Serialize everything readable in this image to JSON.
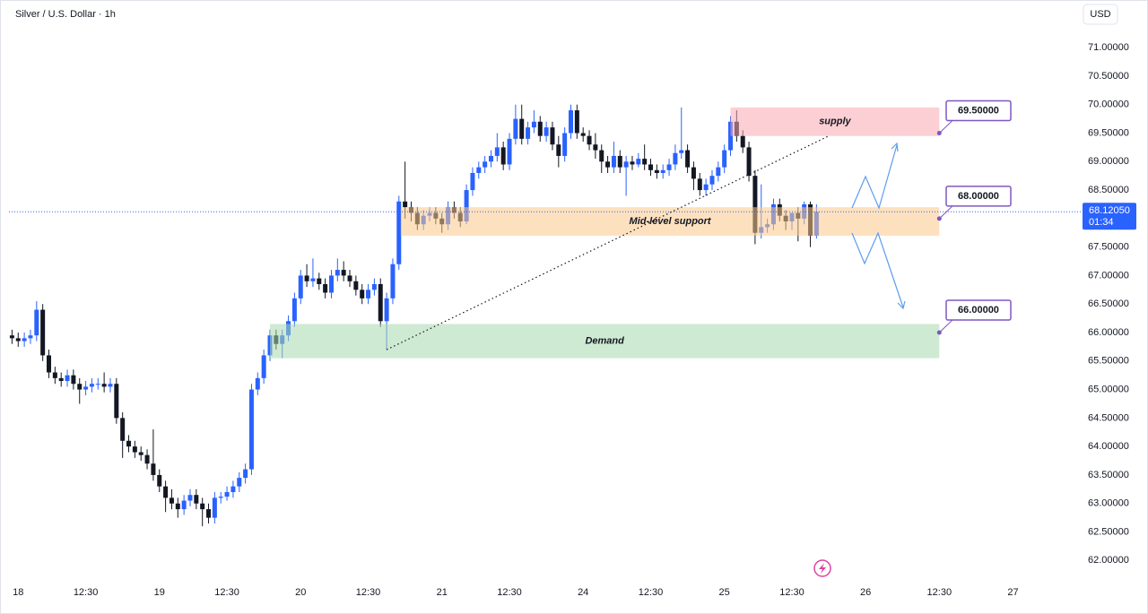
{
  "chart_data": {
    "type": "candlestick",
    "title": "Silver / U.S. Dollar · 1h",
    "currency": "USD",
    "x": [
      0,
      1,
      2,
      3,
      4,
      5,
      6,
      7,
      8,
      9,
      10,
      11,
      12,
      13,
      14,
      15,
      16,
      17,
      18,
      19,
      20,
      21,
      22,
      23,
      24,
      25,
      26,
      27,
      28,
      29,
      30,
      31,
      32,
      33,
      34,
      35,
      36,
      37,
      38,
      39,
      40,
      41,
      42,
      43,
      44,
      45,
      46,
      47,
      48,
      49,
      50,
      51,
      52,
      53,
      54,
      55,
      56,
      57,
      58,
      59,
      60,
      61,
      62,
      63,
      64,
      65,
      66,
      67,
      68,
      69,
      70,
      71,
      72,
      73,
      74,
      75,
      76,
      77,
      78,
      79,
      80,
      81,
      82,
      83,
      84,
      85,
      86,
      87,
      88,
      89,
      90,
      91,
      92,
      93,
      94,
      95,
      96,
      97,
      98,
      99,
      100,
      101,
      102,
      103,
      104,
      105,
      106,
      107,
      108,
      109,
      110,
      111,
      112,
      113,
      114,
      115,
      116,
      117,
      118,
      119,
      120,
      121,
      122,
      123,
      124,
      125,
      126,
      127,
      128,
      129,
      130,
      131
    ],
    "open": [
      65.95,
      65.9,
      65.85,
      65.9,
      65.95,
      66.4,
      65.6,
      65.3,
      65.2,
      65.15,
      65.25,
      65.1,
      65.0,
      65.05,
      65.1,
      65.1,
      65.05,
      65.1,
      64.5,
      64.1,
      64.0,
      63.9,
      63.85,
      63.7,
      63.5,
      63.3,
      63.1,
      63.0,
      62.9,
      63.05,
      63.15,
      63.0,
      62.9,
      62.75,
      63.1,
      63.12,
      63.2,
      63.3,
      63.45,
      63.6,
      65.0,
      65.2,
      65.6,
      65.95,
      65.8,
      65.95,
      66.2,
      66.6,
      67.0,
      66.9,
      66.95,
      66.85,
      66.7,
      67.0,
      67.1,
      67.0,
      66.9,
      66.75,
      66.6,
      66.75,
      66.85,
      66.2,
      66.6,
      67.2,
      68.3,
      68.2,
      68.1,
      67.9,
      68.05,
      68.1,
      68.0,
      67.9,
      68.2,
      68.1,
      67.95,
      68.5,
      68.8,
      68.9,
      69.0,
      69.1,
      69.25,
      68.95,
      69.4,
      69.75,
      69.4,
      69.6,
      69.7,
      69.45,
      69.6,
      69.3,
      69.1,
      69.5,
      69.9,
      69.5,
      69.45,
      69.3,
      69.2,
      69.0,
      68.9,
      69.1,
      68.9,
      69.0,
      68.95,
      69.05,
      68.95,
      68.85,
      68.8,
      68.85,
      68.95,
      69.15,
      69.2,
      68.9,
      68.7,
      68.5,
      68.6,
      68.75,
      68.9,
      69.2,
      69.7,
      69.45,
      69.25,
      68.75,
      67.75,
      67.85,
      67.9,
      68.25,
      68.05,
      67.95,
      68.1,
      68.0,
      68.25,
      67.7
    ],
    "high": [
      66.05,
      66.0,
      66.0,
      66.05,
      66.55,
      66.5,
      65.7,
      65.4,
      65.3,
      65.35,
      65.35,
      65.2,
      65.15,
      65.2,
      65.2,
      65.3,
      65.2,
      65.2,
      64.6,
      64.2,
      64.1,
      64.0,
      63.95,
      64.3,
      63.6,
      63.4,
      63.25,
      63.1,
      63.15,
      63.25,
      63.25,
      63.1,
      63.0,
      63.2,
      63.2,
      63.3,
      63.4,
      63.55,
      63.7,
      65.1,
      65.3,
      65.7,
      66.05,
      66.05,
      66.05,
      66.3,
      66.7,
      67.1,
      67.2,
      67.3,
      67.05,
      66.95,
      67.1,
      67.3,
      67.25,
      67.1,
      67.0,
      66.85,
      66.85,
      66.95,
      66.95,
      66.7,
      67.3,
      68.4,
      69.0,
      68.3,
      68.2,
      68.15,
      68.2,
      68.2,
      68.1,
      68.3,
      68.3,
      68.2,
      68.6,
      68.9,
      69.0,
      69.1,
      69.2,
      69.5,
      69.35,
      69.5,
      70.0,
      70.0,
      69.7,
      69.9,
      69.8,
      69.7,
      69.7,
      69.45,
      69.6,
      70.0,
      70.0,
      69.6,
      69.55,
      69.5,
      69.3,
      69.1,
      69.35,
      69.2,
      69.1,
      69.1,
      69.15,
      69.3,
      69.05,
      68.95,
      68.95,
      69.05,
      69.3,
      69.95,
      69.3,
      69.0,
      68.8,
      68.7,
      68.85,
      69.0,
      69.3,
      69.8,
      69.9,
      69.55,
      69.35,
      68.85,
      68.6,
      68.0,
      68.35,
      68.35,
      68.15,
      68.1,
      68.2,
      68.3,
      68.3,
      68.25
    ],
    "low": [
      65.8,
      65.75,
      65.75,
      65.8,
      65.85,
      65.5,
      65.2,
      65.1,
      65.05,
      65.05,
      65.0,
      64.75,
      64.9,
      64.95,
      65.0,
      64.95,
      64.95,
      64.4,
      63.8,
      63.9,
      63.8,
      63.75,
      63.6,
      63.4,
      63.2,
      62.85,
      62.9,
      62.75,
      62.8,
      62.95,
      62.9,
      62.6,
      62.65,
      62.65,
      63.0,
      63.05,
      63.1,
      63.2,
      63.35,
      63.5,
      64.9,
      65.1,
      65.5,
      65.7,
      65.55,
      65.85,
      66.1,
      66.5,
      66.8,
      66.8,
      66.75,
      66.6,
      66.6,
      66.9,
      66.9,
      66.8,
      66.65,
      66.5,
      66.5,
      66.65,
      66.1,
      65.7,
      66.5,
      67.1,
      68.0,
      67.95,
      67.8,
      67.8,
      67.95,
      67.9,
      67.75,
      67.8,
      68.0,
      67.85,
      67.9,
      68.4,
      68.7,
      68.8,
      68.9,
      69.0,
      68.85,
      68.85,
      69.3,
      69.3,
      69.3,
      69.5,
      69.35,
      69.35,
      69.2,
      68.9,
      69.0,
      69.4,
      69.4,
      69.35,
      69.2,
      69.05,
      68.8,
      68.8,
      68.8,
      68.8,
      68.4,
      68.85,
      68.9,
      68.85,
      68.75,
      68.7,
      68.7,
      68.75,
      68.85,
      69.05,
      68.8,
      68.5,
      68.4,
      68.4,
      68.5,
      68.65,
      68.8,
      69.1,
      69.35,
      69.15,
      68.65,
      67.55,
      67.65,
      67.75,
      67.8,
      67.95,
      67.8,
      67.8,
      67.6,
      67.9,
      67.5,
      67.65
    ],
    "close": [
      65.9,
      65.85,
      65.9,
      65.95,
      66.4,
      65.6,
      65.3,
      65.2,
      65.15,
      65.25,
      65.1,
      65.0,
      65.05,
      65.1,
      65.1,
      65.05,
      65.1,
      64.5,
      64.1,
      64.0,
      63.9,
      63.85,
      63.7,
      63.5,
      63.3,
      63.1,
      63.0,
      62.9,
      63.05,
      63.15,
      63.0,
      62.9,
      62.75,
      63.1,
      63.12,
      63.2,
      63.3,
      63.45,
      63.6,
      65.0,
      65.2,
      65.6,
      65.95,
      65.8,
      65.95,
      66.2,
      66.6,
      67.0,
      66.9,
      66.95,
      66.85,
      66.7,
      67.0,
      67.1,
      67.0,
      66.9,
      66.75,
      66.6,
      66.75,
      66.85,
      66.2,
      66.6,
      67.2,
      68.3,
      68.2,
      68.1,
      67.9,
      68.05,
      68.1,
      68.0,
      67.9,
      68.2,
      68.1,
      67.95,
      68.5,
      68.8,
      68.9,
      69.0,
      69.1,
      69.25,
      68.95,
      69.4,
      69.75,
      69.4,
      69.6,
      69.7,
      69.45,
      69.6,
      69.3,
      69.1,
      69.5,
      69.9,
      69.5,
      69.45,
      69.3,
      69.2,
      69.0,
      68.9,
      69.1,
      68.9,
      69.0,
      68.95,
      69.05,
      68.95,
      68.85,
      68.8,
      68.85,
      68.95,
      69.15,
      69.2,
      68.9,
      68.7,
      68.5,
      68.6,
      68.75,
      68.9,
      69.2,
      69.7,
      69.45,
      69.25,
      68.75,
      67.75,
      67.85,
      67.9,
      68.25,
      68.05,
      67.95,
      68.1,
      68.0,
      68.25,
      67.7,
      68.1205
    ],
    "up_color": "#2962ff",
    "down_color": "#131722",
    "xlim": [
      -0.5,
      173.3
    ],
    "xticks": [
      {
        "value": 1,
        "label": "18"
      },
      {
        "value": 12,
        "label": "12:30"
      },
      {
        "value": 24,
        "label": "19"
      },
      {
        "value": 35,
        "label": "12:30"
      },
      {
        "value": 47,
        "label": "20"
      },
      {
        "value": 58,
        "label": "12:30"
      },
      {
        "value": 70,
        "label": "21"
      },
      {
        "value": 81,
        "label": "12:30"
      },
      {
        "value": 93,
        "label": "24"
      },
      {
        "value": 104,
        "label": "12:30"
      },
      {
        "value": 116,
        "label": "25"
      },
      {
        "value": 127,
        "label": "12:30"
      },
      {
        "value": 139,
        "label": "26"
      },
      {
        "value": 151,
        "label": "12:30"
      },
      {
        "value": 163,
        "label": "27"
      }
    ],
    "ylim": [
      61.69,
      71.71
    ],
    "yticks": [
      {
        "value": 62,
        "label": "62.00000"
      },
      {
        "value": 62.5,
        "label": "62.50000"
      },
      {
        "value": 63,
        "label": "63.00000"
      },
      {
        "value": 63.5,
        "label": "63.50000"
      },
      {
        "value": 64,
        "label": "64.00000"
      },
      {
        "value": 64.5,
        "label": "64.50000"
      },
      {
        "value": 65,
        "label": "65.00000"
      },
      {
        "value": 65.5,
        "label": "65.50000"
      },
      {
        "value": 66,
        "label": "66.00000"
      },
      {
        "value": 66.5,
        "label": "66.50000"
      },
      {
        "value": 67,
        "label": "67.00000"
      },
      {
        "value": 67.5,
        "label": "67.50000"
      },
      {
        "value": 68,
        "label": "68.00000"
      },
      {
        "value": 68.5,
        "label": "68.50000"
      },
      {
        "value": 69,
        "label": "69.00000"
      },
      {
        "value": 69.5,
        "label": "69.50000"
      },
      {
        "value": 70,
        "label": "70.00000"
      },
      {
        "value": 70.5,
        "label": "70.50000"
      },
      {
        "value": 71,
        "label": "71.00000"
      }
    ],
    "last_price": {
      "value": 68.1205,
      "label": "68.12050",
      "countdown": "01:34"
    },
    "zones": [
      {
        "label": "supply",
        "x": [
          117,
          151
        ],
        "y": [
          69.45,
          69.95
        ],
        "color": "#f7a8b0",
        "callout": {
          "value": 69.5,
          "label": "69.50000"
        }
      },
      {
        "label": "Mid-lével support",
        "x": [
          63.3,
          151
        ],
        "y": [
          67.7,
          68.2
        ],
        "color": "#fcc98a",
        "callout": {
          "value": 68,
          "label": "68.00000"
        }
      },
      {
        "label": "Demand",
        "x": [
          42,
          151
        ],
        "y": [
          65.55,
          66.15
        ],
        "color": "#a8d9ad",
        "callout": {
          "value": 66,
          "label": "66.00000"
        }
      }
    ],
    "trendline": {
      "x": [
        61,
        133
      ],
      "y": [
        65.7,
        69.45
      ]
    }
  }
}
